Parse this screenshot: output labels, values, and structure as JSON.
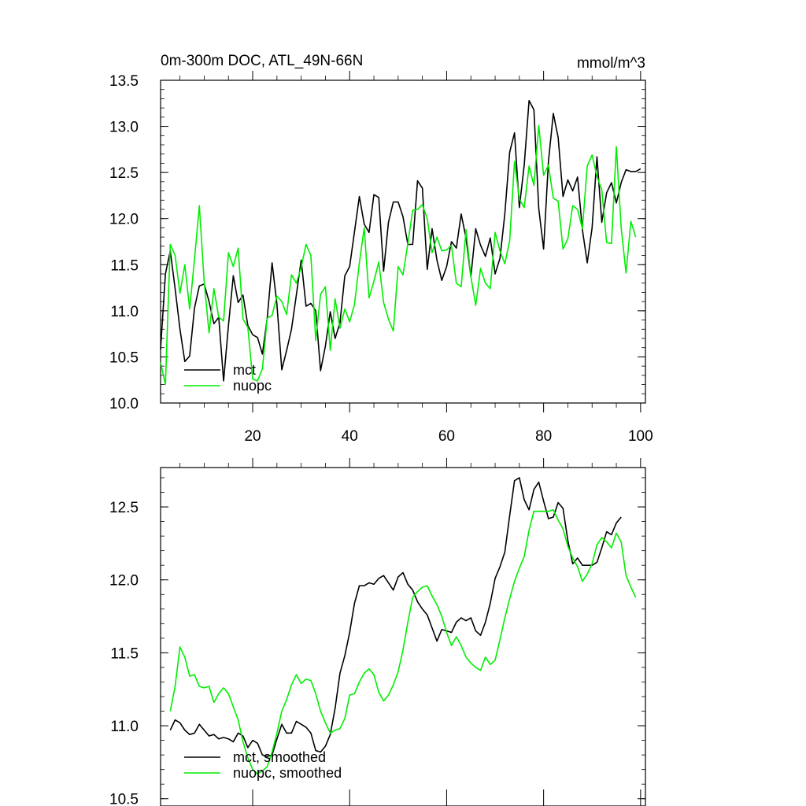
{
  "colors": {
    "mct": "#000000",
    "nuopc": "#00ee00",
    "axis": "#000000",
    "background": "#ffffff"
  },
  "chart_data": [
    {
      "type": "line",
      "title": "0m-300m DOC, ATL_49N-66N",
      "units": "mmol/m^3",
      "xlim": [
        1,
        101
      ],
      "xticks": [
        20,
        40,
        60,
        80,
        100
      ],
      "ylim": [
        10.0,
        13.5
      ],
      "yticks": [
        10.0,
        10.5,
        11.0,
        11.5,
        12.0,
        12.5,
        13.0,
        13.5
      ],
      "ytick_labels": [
        "10.0",
        "10.5",
        "11.0",
        "11.5",
        "12.0",
        "12.5",
        "13.0",
        "13.5"
      ],
      "legend_position": "bottom-left",
      "series": [
        {
          "name": "mct",
          "color": "#000000",
          "x_start": 1,
          "values": [
            10.58,
            11.4,
            11.65,
            11.24,
            10.8,
            10.45,
            10.51,
            11.03,
            11.27,
            11.29,
            11.1,
            10.86,
            10.93,
            10.24,
            10.84,
            11.38,
            11.09,
            11.17,
            10.84,
            10.74,
            10.71,
            10.53,
            10.92,
            11.52,
            11.07,
            10.36,
            10.57,
            10.8,
            11.17,
            11.55,
            11.05,
            11.08,
            11.0,
            10.35,
            10.62,
            10.99,
            10.7,
            10.87,
            11.38,
            11.48,
            11.86,
            12.24,
            11.94,
            11.85,
            12.26,
            12.23,
            11.43,
            11.96,
            12.18,
            12.18,
            12.02,
            11.72,
            11.72,
            12.41,
            12.33,
            11.45,
            11.89,
            11.55,
            11.33,
            11.48,
            11.75,
            11.68,
            12.05,
            11.79,
            11.37,
            11.89,
            11.71,
            11.59,
            11.79,
            11.4,
            11.57,
            12.05,
            12.72,
            12.93,
            12.12,
            12.58,
            13.28,
            13.18,
            12.11,
            11.67,
            12.62,
            13.14,
            12.88,
            12.24,
            12.42,
            12.3,
            12.45,
            11.88,
            11.52,
            11.9,
            12.67,
            11.96,
            12.28,
            12.39,
            12.17,
            12.39,
            12.53,
            12.51,
            12.51,
            12.54
          ]
        },
        {
          "name": "nuopc",
          "color": "#00ee00",
          "x_start": 1,
          "values": [
            10.44,
            10.2,
            11.72,
            11.6,
            11.19,
            11.5,
            11.02,
            11.56,
            12.14,
            11.31,
            10.76,
            11.24,
            10.93,
            10.89,
            11.63,
            11.48,
            11.68,
            10.91,
            10.82,
            10.26,
            10.24,
            10.37,
            10.92,
            10.95,
            11.16,
            11.1,
            10.96,
            11.39,
            11.3,
            11.47,
            11.72,
            11.6,
            10.68,
            11.18,
            11.26,
            10.57,
            11.13,
            10.81,
            11.02,
            10.88,
            11.07,
            11.52,
            11.9,
            11.14,
            11.32,
            11.53,
            11.09,
            10.91,
            10.78,
            11.48,
            11.39,
            11.73,
            12.09,
            12.1,
            12.15,
            12.0,
            11.63,
            11.8,
            11.65,
            11.66,
            11.71,
            11.3,
            11.26,
            11.88,
            11.37,
            11.06,
            11.46,
            11.3,
            11.24,
            11.85,
            11.65,
            11.51,
            11.76,
            12.62,
            12.21,
            12.12,
            12.57,
            12.36,
            13.01,
            12.47,
            12.58,
            12.22,
            12.19,
            11.67,
            11.78,
            12.14,
            12.1,
            11.89,
            12.57,
            12.69,
            12.46,
            12.31,
            11.74,
            11.73,
            12.78,
            11.9,
            11.41,
            11.97,
            11.8
          ]
        }
      ],
      "legend": [
        {
          "label": "mct",
          "color": "#000000"
        },
        {
          "label": "nuopc",
          "color": "#00ee00"
        }
      ]
    },
    {
      "type": "line",
      "title": "",
      "xlim": [
        1,
        101
      ],
      "xticks": [
        20,
        40,
        60,
        80,
        100
      ],
      "ylim": [
        10.45,
        12.77
      ],
      "yticks": [
        10.5,
        11.0,
        11.5,
        12.0,
        12.5
      ],
      "ytick_labels": [
        "10.5",
        "11.0",
        "11.5",
        "12.0",
        "12.5"
      ],
      "legend_position": "bottom-left",
      "series": [
        {
          "name": "mct, smoothed",
          "color": "#000000",
          "x_start": 3,
          "values": [
            10.97,
            11.04,
            11.02,
            10.97,
            10.94,
            10.95,
            11.01,
            10.97,
            10.93,
            10.94,
            10.91,
            10.92,
            10.91,
            10.89,
            10.95,
            10.93,
            10.85,
            10.9,
            10.88,
            10.8,
            10.79,
            10.8,
            10.91,
            11.01,
            10.95,
            10.95,
            11.03,
            11.01,
            10.99,
            10.95,
            10.83,
            10.82,
            10.86,
            10.94,
            11.12,
            11.36,
            11.48,
            11.64,
            11.84,
            11.96,
            11.96,
            11.98,
            11.97,
            12.01,
            12.03,
            11.98,
            11.93,
            12.02,
            12.05,
            11.97,
            11.93,
            11.85,
            11.8,
            11.76,
            11.67,
            11.58,
            11.66,
            11.65,
            11.64,
            11.71,
            11.74,
            11.72,
            11.74,
            11.65,
            11.62,
            11.71,
            11.84,
            12.01,
            12.09,
            12.19,
            12.44,
            12.68,
            12.7,
            12.55,
            12.48,
            12.62,
            12.67,
            12.54,
            12.42,
            12.43,
            12.53,
            12.49,
            12.27,
            12.11,
            12.15,
            12.1,
            12.1,
            12.1,
            12.12,
            12.22,
            12.33,
            12.31,
            12.39,
            12.43
          ]
        },
        {
          "name": "nuopc, smoothed",
          "color": "#00ee00",
          "x_start": 3,
          "values": [
            11.1,
            11.27,
            11.54,
            11.47,
            11.34,
            11.35,
            11.27,
            11.26,
            11.27,
            11.16,
            11.22,
            11.26,
            11.22,
            11.13,
            11.04,
            10.89,
            10.78,
            10.7,
            10.67,
            10.69,
            10.72,
            10.82,
            10.95,
            11.1,
            11.18,
            11.28,
            11.35,
            11.29,
            11.32,
            11.31,
            11.22,
            11.1,
            11.02,
            10.95,
            10.97,
            10.98,
            11.05,
            11.21,
            11.22,
            11.3,
            11.36,
            11.39,
            11.35,
            11.23,
            11.17,
            11.21,
            11.28,
            11.37,
            11.52,
            11.71,
            11.88,
            11.92,
            11.95,
            11.96,
            11.89,
            11.83,
            11.75,
            11.64,
            11.55,
            11.61,
            11.55,
            11.47,
            11.43,
            11.4,
            11.38,
            11.47,
            11.42,
            11.45,
            11.59,
            11.74,
            11.87,
            11.99,
            12.08,
            12.16,
            12.34,
            12.47,
            12.47,
            12.47,
            12.47,
            12.48,
            12.41,
            12.35,
            12.23,
            12.15,
            12.09,
            11.99,
            12.04,
            12.11,
            12.24,
            12.29,
            12.26,
            12.22,
            12.32,
            12.26,
            12.03,
            11.95,
            11.88
          ]
        }
      ],
      "legend": [
        {
          "label": "mct, smoothed",
          "color": "#000000"
        },
        {
          "label": "nuopc, smoothed",
          "color": "#00ee00"
        }
      ]
    }
  ]
}
